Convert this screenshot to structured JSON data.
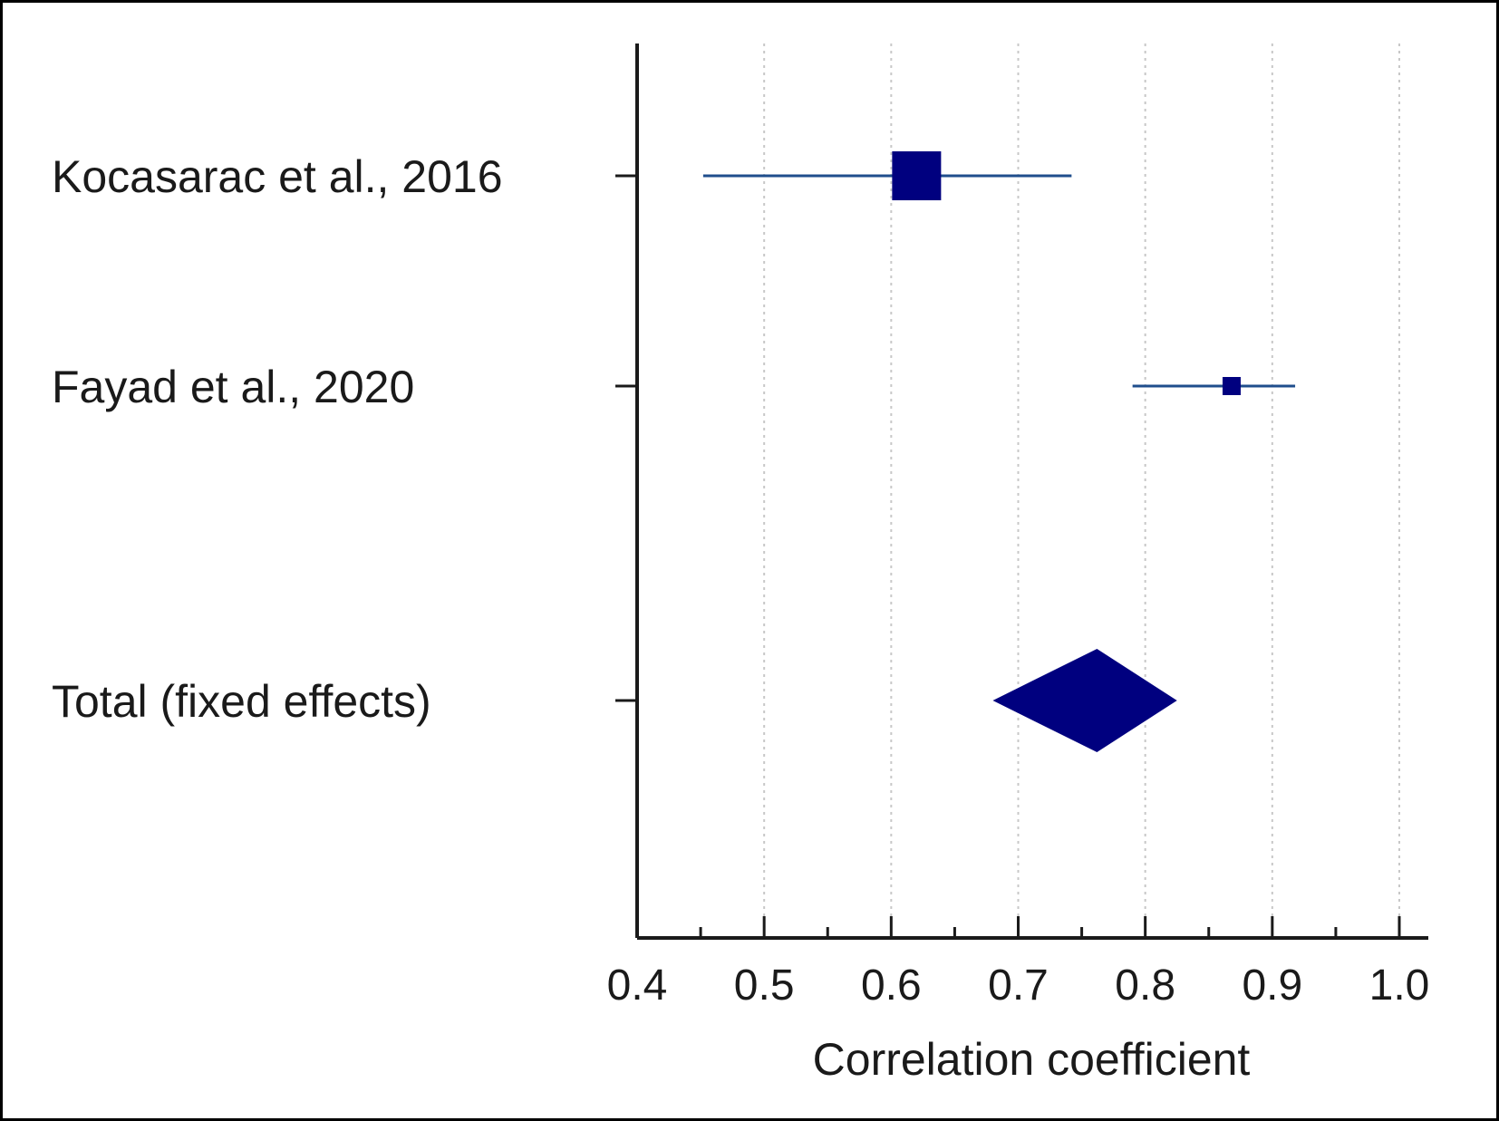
{
  "chart_data": {
    "type": "forest",
    "xlabel": "Correlation coefficient",
    "xlim": [
      0.38,
      1.02
    ],
    "ticks": [
      "0.4",
      "0.5",
      "0.6",
      "0.7",
      "0.8",
      "0.9",
      "1.0"
    ],
    "tick_values": [
      0.4,
      0.5,
      0.6,
      0.7,
      0.8,
      0.9,
      1.0
    ],
    "minor_tick_values": [
      0.45,
      0.55,
      0.65,
      0.75,
      0.85,
      0.95
    ],
    "grid": true,
    "studies": [
      {
        "label": "Kocasarac et al., 2016",
        "estimate": 0.62,
        "ci_low": 0.452,
        "ci_high": 0.742,
        "weight": "large"
      },
      {
        "label": "Fayad et al., 2020",
        "estimate": 0.868,
        "ci_low": 0.79,
        "ci_high": 0.918,
        "weight": "small"
      }
    ],
    "summary": {
      "label": "Total (fixed effects)",
      "estimate": 0.762,
      "ci_low": 0.68,
      "ci_high": 0.825
    },
    "colors": {
      "marker": "#00007f",
      "ci_line": "#1f4e8c",
      "axis": "#1a1a1a",
      "grid": "#c8c8c8",
      "frame": "#000000"
    }
  }
}
